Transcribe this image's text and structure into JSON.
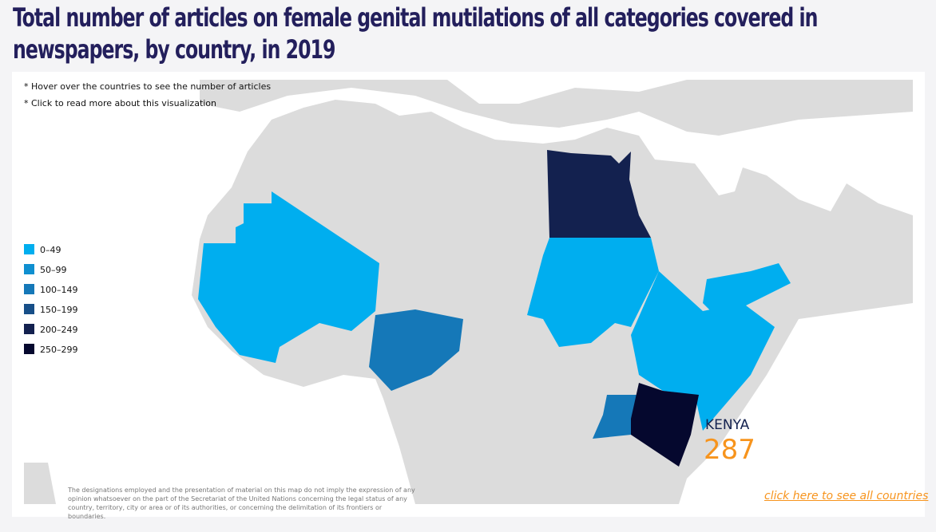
{
  "title": "Total number of articles on female genital mutilations of all categories covered in newspapers, by country, in 2019",
  "notes": [
    "* Hover over the countries to see the number of articles",
    "* Click to read more about this visualization"
  ],
  "legend": [
    {
      "label": "0–49",
      "color": "#00aeef"
    },
    {
      "label": "50–99",
      "color": "#0f8fd0"
    },
    {
      "label": "100–149",
      "color": "#1578b8"
    },
    {
      "label": "150–199",
      "color": "#174f88"
    },
    {
      "label": "200–249",
      "color": "#13214f"
    },
    {
      "label": "250–299",
      "color": "#05082e"
    }
  ],
  "highlight": {
    "country": "KENYA",
    "value": 287,
    "color": "#f7941d"
  },
  "disclaimer": "The designations employed and the presentation of material on this map do not imply the expression of any opinion whatsoever on the part of the Secretariat of the United Nations concerning the legal status of any country, territory, city or area or of its authorities, or concerning the delimitation of its frontiers or boundaries.",
  "link": "click here to see all countries"
}
